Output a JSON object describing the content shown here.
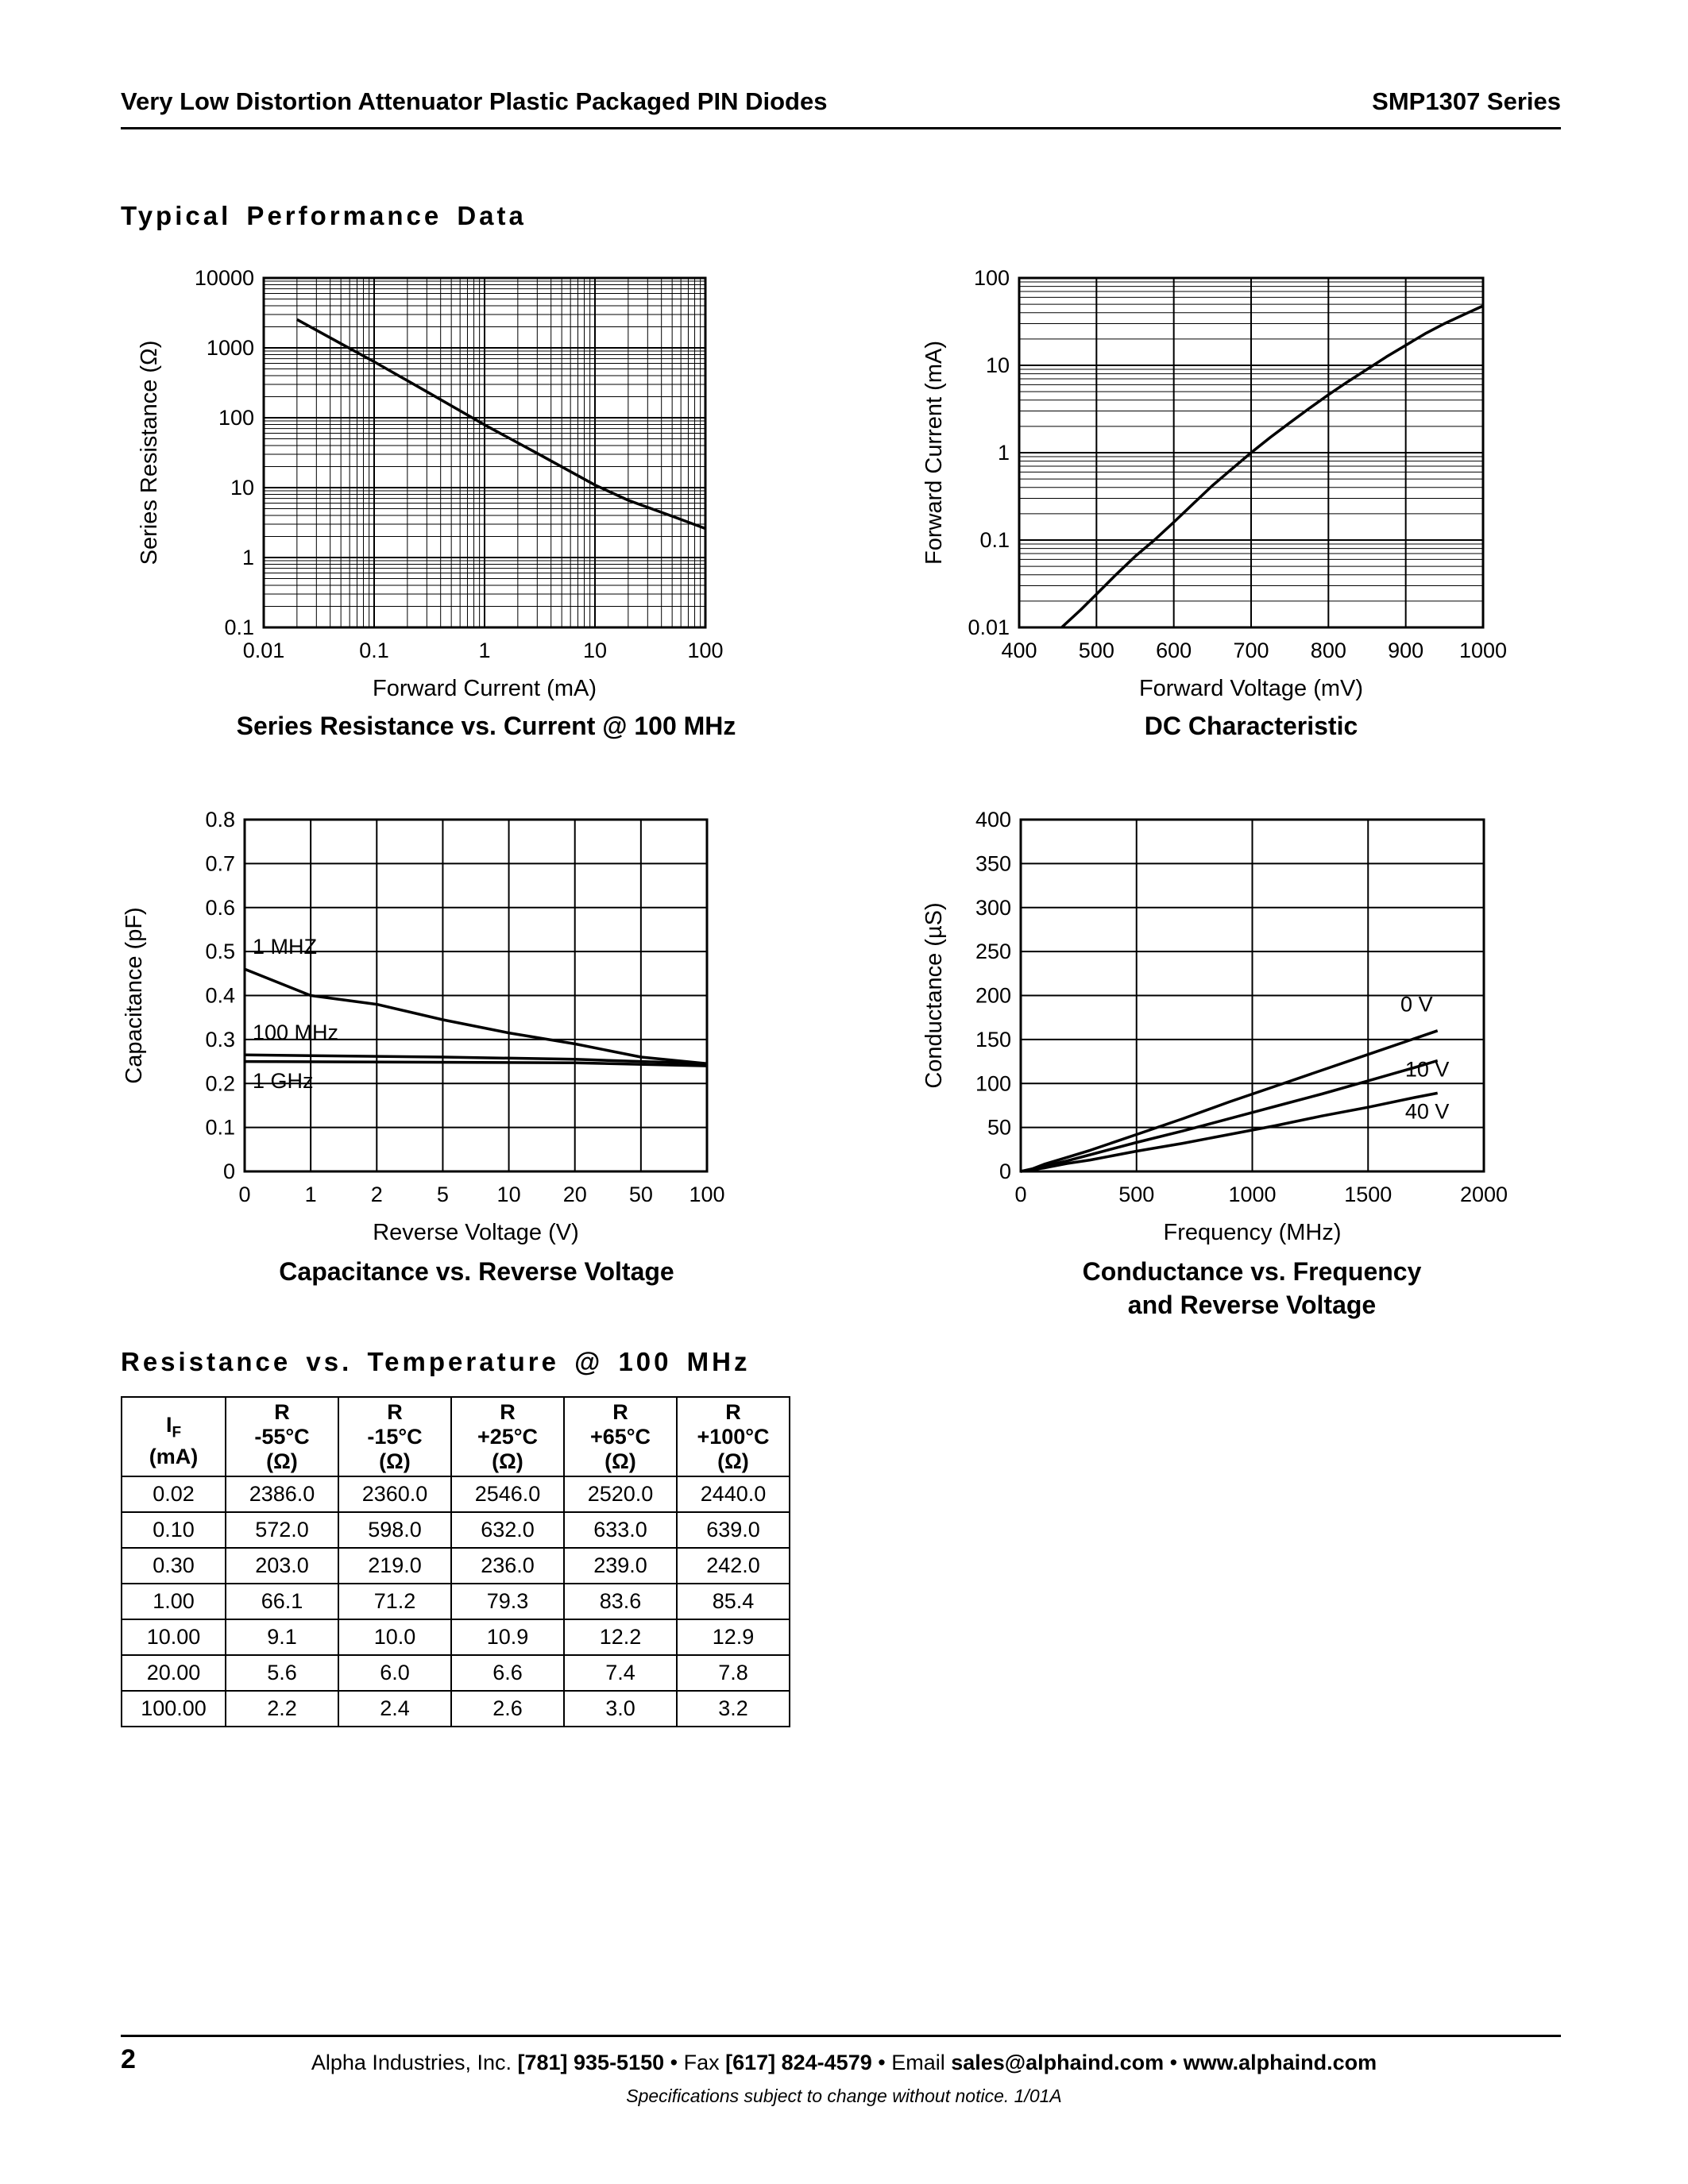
{
  "page": {
    "header_left": "Very Low Distortion Attenuator Plastic Packaged PIN Diodes",
    "header_right": "SMP1307 Series",
    "section1_title": "Typical Performance Data",
    "section2_title": "Resistance vs. Temperature @ 100 MHz",
    "footer": {
      "page_number": "2",
      "segments": [
        {
          "text": "Alpha Industries, Inc. ",
          "bold": false
        },
        {
          "text": "[781] 935-5150",
          "bold": true
        },
        {
          "text": " • Fax ",
          "bold": false
        },
        {
          "text": "[617] 824-4579",
          "bold": true
        },
        {
          "text": " • Email ",
          "bold": false
        },
        {
          "text": "sales@alphaind.com",
          "bold": true
        },
        {
          "text": " • ",
          "bold": false
        },
        {
          "text": "www.alphaind.com",
          "bold": true
        }
      ],
      "note": "Specifications subject to change without notice.  1/01A"
    }
  },
  "table": {
    "if_header": {
      "base": "I",
      "sub": "F",
      "unit": "(mA)"
    },
    "r_headers": [
      {
        "symbol": "R",
        "temp": "-55°C",
        "unit": "(Ω)"
      },
      {
        "symbol": "R",
        "temp": "-15°C",
        "unit": "(Ω)"
      },
      {
        "symbol": "R",
        "temp": "+25°C",
        "unit": "(Ω)"
      },
      {
        "symbol": "R",
        "temp": "+65°C",
        "unit": "(Ω)"
      },
      {
        "symbol": "R",
        "temp": "+100°C",
        "unit": "(Ω)"
      }
    ],
    "rows": [
      [
        "0.02",
        "2386.0",
        "2360.0",
        "2546.0",
        "2520.0",
        "2440.0"
      ],
      [
        "0.10",
        "572.0",
        "598.0",
        "632.0",
        "633.0",
        "639.0"
      ],
      [
        "0.30",
        "203.0",
        "219.0",
        "236.0",
        "239.0",
        "242.0"
      ],
      [
        "1.00",
        "66.1",
        "71.2",
        "79.3",
        "83.6",
        "85.4"
      ],
      [
        "10.00",
        "9.1",
        "10.0",
        "10.9",
        "12.2",
        "12.9"
      ],
      [
        "20.00",
        "5.6",
        "6.0",
        "6.6",
        "7.4",
        "7.8"
      ],
      [
        "100.00",
        "2.2",
        "2.4",
        "2.6",
        "3.0",
        "3.2"
      ]
    ]
  },
  "chart_data": [
    {
      "id": "series-resistance",
      "type": "line",
      "title": "Series Resistance vs. Current @ 100 MHz",
      "xlabel": "Forward Current (mA)",
      "ylabel": "Series Resistance (Ω)",
      "xscale": "log",
      "xlim": [
        0.01,
        100
      ],
      "yscale": "log",
      "ylim": [
        0.1,
        10000
      ],
      "xticks": [
        0.01,
        0.1,
        1,
        10,
        100
      ],
      "xtick_labels": [
        "0.01",
        "0.1",
        "1",
        "10",
        "100"
      ],
      "yticks": [
        0.1,
        1,
        10,
        100,
        1000,
        10000
      ],
      "ytick_labels": [
        "0.1",
        "1",
        "10",
        "100",
        "1000",
        "10000"
      ],
      "series": [
        {
          "name": "series-resistance",
          "points": [
            [
              0.02,
              2546
            ],
            [
              0.05,
              1150
            ],
            [
              0.1,
              632
            ],
            [
              0.3,
              236
            ],
            [
              1,
              79.3
            ],
            [
              3,
              31
            ],
            [
              10,
              10.9
            ],
            [
              20,
              6.6
            ],
            [
              50,
              3.9
            ],
            [
              100,
              2.6
            ]
          ]
        }
      ],
      "annotations": []
    },
    {
      "id": "dc-characteristic",
      "type": "line",
      "title": "DC Characteristic",
      "xlabel": "Forward Voltage (mV)",
      "ylabel": "Forward Current (mA)",
      "xscale": "linear",
      "xlim": [
        400,
        1000
      ],
      "yscale": "log",
      "ylim": [
        0.01,
        100
      ],
      "xticks": [
        400,
        500,
        600,
        700,
        800,
        900,
        1000
      ],
      "xtick_labels": [
        "400",
        "500",
        "600",
        "700",
        "800",
        "900",
        "1000"
      ],
      "yticks": [
        0.01,
        0.1,
        1,
        10,
        100
      ],
      "ytick_labels": [
        "0.01",
        "0.1",
        "1",
        "10",
        "100"
      ],
      "series": [
        {
          "name": "dc-curve",
          "points": [
            [
              455,
              0.01
            ],
            [
              480,
              0.016
            ],
            [
              500,
              0.024
            ],
            [
              525,
              0.04
            ],
            [
              550,
              0.065
            ],
            [
              575,
              0.1
            ],
            [
              600,
              0.16
            ],
            [
              625,
              0.26
            ],
            [
              650,
              0.42
            ],
            [
              675,
              0.65
            ],
            [
              700,
              1.0
            ],
            [
              725,
              1.5
            ],
            [
              750,
              2.2
            ],
            [
              775,
              3.2
            ],
            [
              800,
              4.6
            ],
            [
              825,
              6.5
            ],
            [
              850,
              9
            ],
            [
              875,
              12.5
            ],
            [
              900,
              17
            ],
            [
              925,
              23
            ],
            [
              950,
              30
            ],
            [
              975,
              38
            ],
            [
              1000,
              48
            ]
          ]
        }
      ],
      "annotations": []
    },
    {
      "id": "capacitance",
      "type": "line",
      "title": "Capacitance vs. Reverse Voltage",
      "xlabel": "Reverse Voltage (V)",
      "ylabel": "Capacitance (pF)",
      "xscale": "category",
      "categories": [
        0,
        1,
        2,
        5,
        10,
        20,
        50,
        100
      ],
      "yscale": "linear",
      "ylim": [
        0,
        0.8
      ],
      "xticks": [
        0,
        1,
        2,
        5,
        10,
        20,
        50,
        100
      ],
      "xtick_labels": [
        "0",
        "1",
        "2",
        "5",
        "10",
        "20",
        "50",
        "100"
      ],
      "yticks": [
        0,
        0.1,
        0.2,
        0.3,
        0.4,
        0.5,
        0.6,
        0.7,
        0.8
      ],
      "ytick_labels": [
        "0",
        "0.1",
        "0.2",
        "0.3",
        "0.4",
        "0.5",
        "0.6",
        "0.7",
        "0.8"
      ],
      "series": [
        {
          "name": "1 MHZ",
          "points": [
            [
              0,
              0.46
            ],
            [
              1,
              0.4
            ],
            [
              2,
              0.38
            ],
            [
              5,
              0.345
            ],
            [
              10,
              0.315
            ],
            [
              20,
              0.29
            ],
            [
              50,
              0.26
            ],
            [
              100,
              0.245
            ]
          ]
        },
        {
          "name": "100 MHz",
          "points": [
            [
              0,
              0.265
            ],
            [
              5,
              0.26
            ],
            [
              20,
              0.255
            ],
            [
              100,
              0.245
            ]
          ]
        },
        {
          "name": "1 GHz",
          "points": [
            [
              0,
              0.25
            ],
            [
              20,
              0.247
            ],
            [
              100,
              0.24
            ]
          ]
        }
      ],
      "annotations": [
        {
          "text": "1 MHZ",
          "x": 0.12,
          "y": 0.495
        },
        {
          "text": "100 MHz",
          "x": 0.12,
          "y": 0.3
        },
        {
          "text": "1 GHz",
          "x": 0.12,
          "y": 0.19
        }
      ]
    },
    {
      "id": "conductance",
      "type": "line",
      "title": "Conductance vs. Frequency\nand Reverse Voltage",
      "xlabel": "Frequency (MHz)",
      "ylabel": "Conductance (µS)",
      "xscale": "linear",
      "xlim": [
        0,
        2000
      ],
      "yscale": "linear",
      "ylim": [
        0,
        400
      ],
      "xticks": [
        0,
        500,
        1000,
        1500,
        2000
      ],
      "xtick_labels": [
        "0",
        "500",
        "1000",
        "1500",
        "2000"
      ],
      "yticks": [
        0,
        50,
        100,
        150,
        200,
        250,
        300,
        350,
        400
      ],
      "ytick_labels": [
        "0",
        "50",
        "100",
        "150",
        "200",
        "250",
        "300",
        "350",
        "400"
      ],
      "series": [
        {
          "name": "0 V",
          "points": [
            [
              0,
              0
            ],
            [
              50,
              3
            ],
            [
              100,
              8
            ],
            [
              200,
              16
            ],
            [
              300,
              24
            ],
            [
              500,
              42
            ],
            [
              700,
              60
            ],
            [
              900,
              79
            ],
            [
              1100,
              97
            ],
            [
              1300,
              115
            ],
            [
              1500,
              133
            ],
            [
              1700,
              151
            ],
            [
              1800,
              160
            ]
          ]
        },
        {
          "name": "10 V",
          "points": [
            [
              0,
              0
            ],
            [
              50,
              2
            ],
            [
              100,
              6
            ],
            [
              200,
              12
            ],
            [
              300,
              19
            ],
            [
              500,
              33
            ],
            [
              700,
              46
            ],
            [
              900,
              60
            ],
            [
              1100,
              74
            ],
            [
              1300,
              88
            ],
            [
              1500,
              103
            ],
            [
              1700,
              118
            ],
            [
              1800,
              126
            ]
          ]
        },
        {
          "name": "40 V",
          "points": [
            [
              0,
              0
            ],
            [
              50,
              2
            ],
            [
              100,
              4
            ],
            [
              200,
              9
            ],
            [
              300,
              13
            ],
            [
              500,
              23
            ],
            [
              700,
              32
            ],
            [
              900,
              42
            ],
            [
              1100,
              52
            ],
            [
              1300,
              63
            ],
            [
              1500,
              73
            ],
            [
              1700,
              84
            ],
            [
              1800,
              89
            ]
          ]
        }
      ],
      "annotations": [
        {
          "text": "0 V",
          "x": 1640,
          "y": 182
        },
        {
          "text": "10 V",
          "x": 1660,
          "y": 108
        },
        {
          "text": "40 V",
          "x": 1660,
          "y": 60
        }
      ]
    }
  ]
}
